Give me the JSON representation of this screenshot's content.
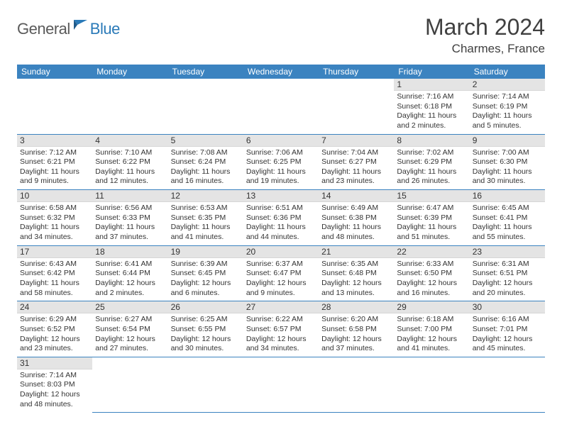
{
  "logo": {
    "part1": "General",
    "part2": "Blue"
  },
  "title": "March 2024",
  "location": "Charmes, France",
  "colors": {
    "header_bg": "#3b83c0",
    "header_text": "#ffffff",
    "daynum_bg": "#e4e4e4",
    "border": "#3b83c0",
    "logo_gray": "#5a5a5a",
    "logo_blue": "#2a7ab8"
  },
  "weekdays": [
    "Sunday",
    "Monday",
    "Tuesday",
    "Wednesday",
    "Thursday",
    "Friday",
    "Saturday"
  ],
  "weeks": [
    [
      null,
      null,
      null,
      null,
      null,
      {
        "n": "1",
        "sunrise": "Sunrise: 7:16 AM",
        "sunset": "Sunset: 6:18 PM",
        "daylight": "Daylight: 11 hours and 2 minutes."
      },
      {
        "n": "2",
        "sunrise": "Sunrise: 7:14 AM",
        "sunset": "Sunset: 6:19 PM",
        "daylight": "Daylight: 11 hours and 5 minutes."
      }
    ],
    [
      {
        "n": "3",
        "sunrise": "Sunrise: 7:12 AM",
        "sunset": "Sunset: 6:21 PM",
        "daylight": "Daylight: 11 hours and 9 minutes."
      },
      {
        "n": "4",
        "sunrise": "Sunrise: 7:10 AM",
        "sunset": "Sunset: 6:22 PM",
        "daylight": "Daylight: 11 hours and 12 minutes."
      },
      {
        "n": "5",
        "sunrise": "Sunrise: 7:08 AM",
        "sunset": "Sunset: 6:24 PM",
        "daylight": "Daylight: 11 hours and 16 minutes."
      },
      {
        "n": "6",
        "sunrise": "Sunrise: 7:06 AM",
        "sunset": "Sunset: 6:25 PM",
        "daylight": "Daylight: 11 hours and 19 minutes."
      },
      {
        "n": "7",
        "sunrise": "Sunrise: 7:04 AM",
        "sunset": "Sunset: 6:27 PM",
        "daylight": "Daylight: 11 hours and 23 minutes."
      },
      {
        "n": "8",
        "sunrise": "Sunrise: 7:02 AM",
        "sunset": "Sunset: 6:29 PM",
        "daylight": "Daylight: 11 hours and 26 minutes."
      },
      {
        "n": "9",
        "sunrise": "Sunrise: 7:00 AM",
        "sunset": "Sunset: 6:30 PM",
        "daylight": "Daylight: 11 hours and 30 minutes."
      }
    ],
    [
      {
        "n": "10",
        "sunrise": "Sunrise: 6:58 AM",
        "sunset": "Sunset: 6:32 PM",
        "daylight": "Daylight: 11 hours and 34 minutes."
      },
      {
        "n": "11",
        "sunrise": "Sunrise: 6:56 AM",
        "sunset": "Sunset: 6:33 PM",
        "daylight": "Daylight: 11 hours and 37 minutes."
      },
      {
        "n": "12",
        "sunrise": "Sunrise: 6:53 AM",
        "sunset": "Sunset: 6:35 PM",
        "daylight": "Daylight: 11 hours and 41 minutes."
      },
      {
        "n": "13",
        "sunrise": "Sunrise: 6:51 AM",
        "sunset": "Sunset: 6:36 PM",
        "daylight": "Daylight: 11 hours and 44 minutes."
      },
      {
        "n": "14",
        "sunrise": "Sunrise: 6:49 AM",
        "sunset": "Sunset: 6:38 PM",
        "daylight": "Daylight: 11 hours and 48 minutes."
      },
      {
        "n": "15",
        "sunrise": "Sunrise: 6:47 AM",
        "sunset": "Sunset: 6:39 PM",
        "daylight": "Daylight: 11 hours and 51 minutes."
      },
      {
        "n": "16",
        "sunrise": "Sunrise: 6:45 AM",
        "sunset": "Sunset: 6:41 PM",
        "daylight": "Daylight: 11 hours and 55 minutes."
      }
    ],
    [
      {
        "n": "17",
        "sunrise": "Sunrise: 6:43 AM",
        "sunset": "Sunset: 6:42 PM",
        "daylight": "Daylight: 11 hours and 58 minutes."
      },
      {
        "n": "18",
        "sunrise": "Sunrise: 6:41 AM",
        "sunset": "Sunset: 6:44 PM",
        "daylight": "Daylight: 12 hours and 2 minutes."
      },
      {
        "n": "19",
        "sunrise": "Sunrise: 6:39 AM",
        "sunset": "Sunset: 6:45 PM",
        "daylight": "Daylight: 12 hours and 6 minutes."
      },
      {
        "n": "20",
        "sunrise": "Sunrise: 6:37 AM",
        "sunset": "Sunset: 6:47 PM",
        "daylight": "Daylight: 12 hours and 9 minutes."
      },
      {
        "n": "21",
        "sunrise": "Sunrise: 6:35 AM",
        "sunset": "Sunset: 6:48 PM",
        "daylight": "Daylight: 12 hours and 13 minutes."
      },
      {
        "n": "22",
        "sunrise": "Sunrise: 6:33 AM",
        "sunset": "Sunset: 6:50 PM",
        "daylight": "Daylight: 12 hours and 16 minutes."
      },
      {
        "n": "23",
        "sunrise": "Sunrise: 6:31 AM",
        "sunset": "Sunset: 6:51 PM",
        "daylight": "Daylight: 12 hours and 20 minutes."
      }
    ],
    [
      {
        "n": "24",
        "sunrise": "Sunrise: 6:29 AM",
        "sunset": "Sunset: 6:52 PM",
        "daylight": "Daylight: 12 hours and 23 minutes."
      },
      {
        "n": "25",
        "sunrise": "Sunrise: 6:27 AM",
        "sunset": "Sunset: 6:54 PM",
        "daylight": "Daylight: 12 hours and 27 minutes."
      },
      {
        "n": "26",
        "sunrise": "Sunrise: 6:25 AM",
        "sunset": "Sunset: 6:55 PM",
        "daylight": "Daylight: 12 hours and 30 minutes."
      },
      {
        "n": "27",
        "sunrise": "Sunrise: 6:22 AM",
        "sunset": "Sunset: 6:57 PM",
        "daylight": "Daylight: 12 hours and 34 minutes."
      },
      {
        "n": "28",
        "sunrise": "Sunrise: 6:20 AM",
        "sunset": "Sunset: 6:58 PM",
        "daylight": "Daylight: 12 hours and 37 minutes."
      },
      {
        "n": "29",
        "sunrise": "Sunrise: 6:18 AM",
        "sunset": "Sunset: 7:00 PM",
        "daylight": "Daylight: 12 hours and 41 minutes."
      },
      {
        "n": "30",
        "sunrise": "Sunrise: 6:16 AM",
        "sunset": "Sunset: 7:01 PM",
        "daylight": "Daylight: 12 hours and 45 minutes."
      }
    ],
    [
      {
        "n": "31",
        "sunrise": "Sunrise: 7:14 AM",
        "sunset": "Sunset: 8:03 PM",
        "daylight": "Daylight: 12 hours and 48 minutes."
      },
      null,
      null,
      null,
      null,
      null,
      null
    ]
  ]
}
